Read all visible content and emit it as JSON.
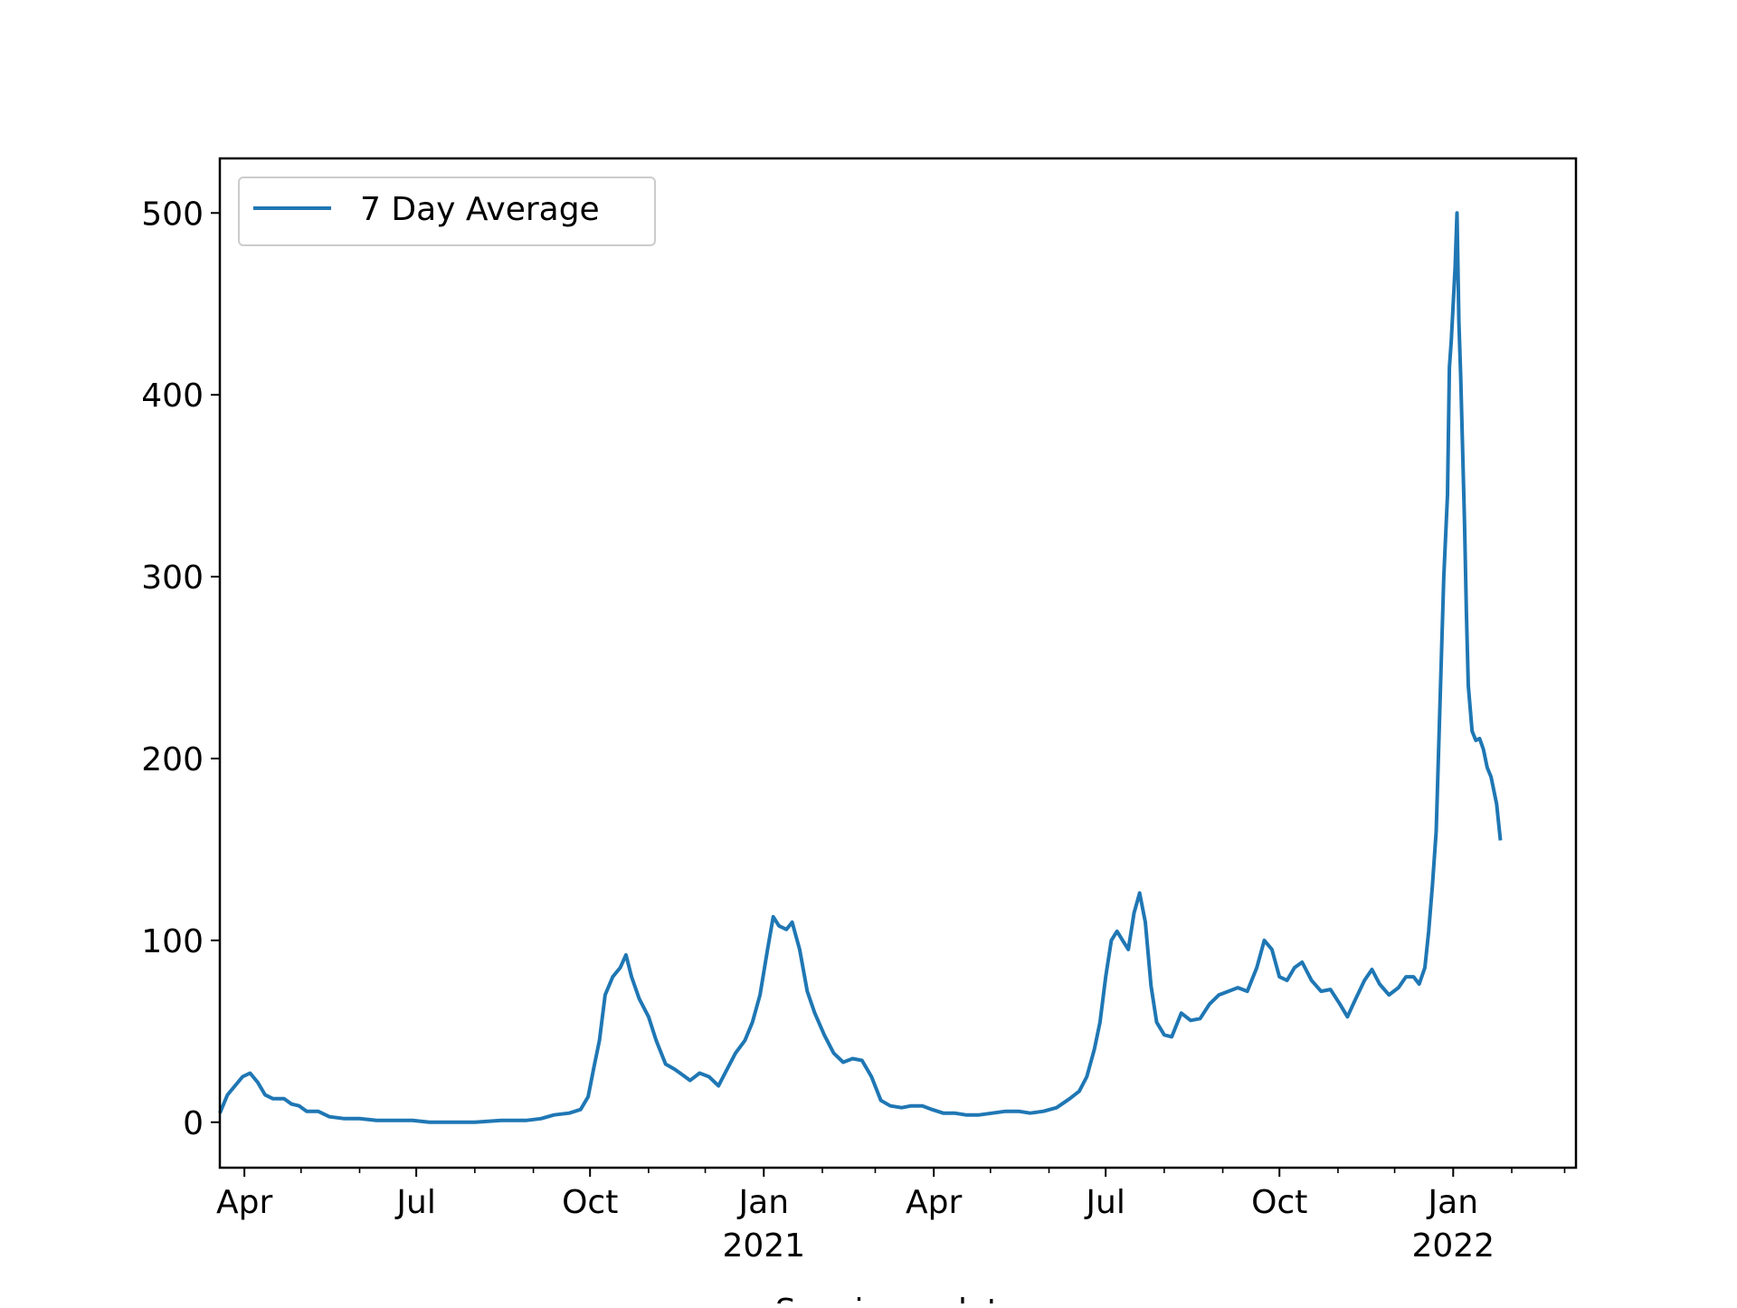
{
  "chart_data": {
    "type": "line",
    "title": "",
    "xlabel": "Specimen date",
    "ylabel": "",
    "ylim": [
      -25,
      530
    ],
    "xlim": [
      "2020-03-19",
      "2022-03-07"
    ],
    "yticks": [
      0,
      100,
      200,
      300,
      400,
      500
    ],
    "xticks": [
      {
        "date": "2020-04-01",
        "label": "Apr",
        "year": ""
      },
      {
        "date": "2020-07-01",
        "label": "Jul",
        "year": ""
      },
      {
        "date": "2020-10-01",
        "label": "Oct",
        "year": ""
      },
      {
        "date": "2021-01-01",
        "label": "Jan",
        "year": "2021"
      },
      {
        "date": "2021-04-01",
        "label": "Apr",
        "year": ""
      },
      {
        "date": "2021-07-01",
        "label": "Jul",
        "year": ""
      },
      {
        "date": "2021-10-01",
        "label": "Oct",
        "year": ""
      },
      {
        "date": "2022-01-01",
        "label": "Jan",
        "year": "2022"
      }
    ],
    "minor_ticks": [
      "2020-05-01",
      "2020-06-01",
      "2020-08-01",
      "2020-09-01",
      "2020-11-01",
      "2020-12-01",
      "2021-02-01",
      "2021-03-01",
      "2021-05-01",
      "2021-06-01",
      "2021-08-01",
      "2021-09-01",
      "2021-11-01",
      "2021-12-01",
      "2022-02-01",
      "2022-03-01"
    ],
    "grid": false,
    "legend": {
      "position": "upper-left"
    },
    "series": [
      {
        "name": "7 Day Average",
        "color": "#1f77b4",
        "points": [
          [
            "2020-03-19",
            5
          ],
          [
            "2020-03-23",
            15
          ],
          [
            "2020-03-27",
            20
          ],
          [
            "2020-03-31",
            25
          ],
          [
            "2020-04-04",
            27
          ],
          [
            "2020-04-08",
            22
          ],
          [
            "2020-04-12",
            15
          ],
          [
            "2020-04-16",
            13
          ],
          [
            "2020-04-22",
            13
          ],
          [
            "2020-04-26",
            10
          ],
          [
            "2020-04-30",
            9
          ],
          [
            "2020-05-04",
            6
          ],
          [
            "2020-05-10",
            6
          ],
          [
            "2020-05-16",
            3
          ],
          [
            "2020-05-24",
            2
          ],
          [
            "2020-06-01",
            2
          ],
          [
            "2020-06-10",
            1
          ],
          [
            "2020-06-20",
            1
          ],
          [
            "2020-06-29",
            1
          ],
          [
            "2020-07-08",
            0
          ],
          [
            "2020-07-20",
            0
          ],
          [
            "2020-08-01",
            0
          ],
          [
            "2020-08-15",
            1
          ],
          [
            "2020-08-28",
            1
          ],
          [
            "2020-09-05",
            2
          ],
          [
            "2020-09-12",
            4
          ],
          [
            "2020-09-20",
            5
          ],
          [
            "2020-09-26",
            7
          ],
          [
            "2020-09-30",
            14
          ],
          [
            "2020-10-03",
            30
          ],
          [
            "2020-10-06",
            45
          ],
          [
            "2020-10-09",
            70
          ],
          [
            "2020-10-13",
            80
          ],
          [
            "2020-10-17",
            85
          ],
          [
            "2020-10-20",
            92
          ],
          [
            "2020-10-23",
            80
          ],
          [
            "2020-10-27",
            68
          ],
          [
            "2020-11-01",
            58
          ],
          [
            "2020-11-05",
            45
          ],
          [
            "2020-11-10",
            32
          ],
          [
            "2020-11-15",
            29
          ],
          [
            "2020-11-19",
            26
          ],
          [
            "2020-11-23",
            23
          ],
          [
            "2020-11-28",
            27
          ],
          [
            "2020-12-03",
            25
          ],
          [
            "2020-12-08",
            20
          ],
          [
            "2020-12-12",
            28
          ],
          [
            "2020-12-17",
            38
          ],
          [
            "2020-12-22",
            45
          ],
          [
            "2020-12-26",
            55
          ],
          [
            "2020-12-30",
            70
          ],
          [
            "2021-01-03",
            95
          ],
          [
            "2021-01-06",
            113
          ],
          [
            "2021-01-09",
            108
          ],
          [
            "2021-01-13",
            106
          ],
          [
            "2021-01-16",
            110
          ],
          [
            "2021-01-20",
            95
          ],
          [
            "2021-01-24",
            72
          ],
          [
            "2021-01-28",
            60
          ],
          [
            "2021-02-02",
            48
          ],
          [
            "2021-02-07",
            38
          ],
          [
            "2021-02-12",
            33
          ],
          [
            "2021-02-17",
            35
          ],
          [
            "2021-02-22",
            34
          ],
          [
            "2021-02-27",
            25
          ],
          [
            "2021-03-04",
            12
          ],
          [
            "2021-03-09",
            9
          ],
          [
            "2021-03-15",
            8
          ],
          [
            "2021-03-20",
            9
          ],
          [
            "2021-03-26",
            9
          ],
          [
            "2021-03-31",
            7
          ],
          [
            "2021-04-06",
            5
          ],
          [
            "2021-04-12",
            5
          ],
          [
            "2021-04-18",
            4
          ],
          [
            "2021-04-25",
            4
          ],
          [
            "2021-05-02",
            5
          ],
          [
            "2021-05-09",
            6
          ],
          [
            "2021-05-16",
            6
          ],
          [
            "2021-05-22",
            5
          ],
          [
            "2021-05-29",
            6
          ],
          [
            "2021-06-05",
            8
          ],
          [
            "2021-06-12",
            13
          ],
          [
            "2021-06-17",
            17
          ],
          [
            "2021-06-21",
            25
          ],
          [
            "2021-06-25",
            40
          ],
          [
            "2021-06-28",
            55
          ],
          [
            "2021-07-01",
            80
          ],
          [
            "2021-07-04",
            100
          ],
          [
            "2021-07-07",
            105
          ],
          [
            "2021-07-10",
            100
          ],
          [
            "2021-07-13",
            95
          ],
          [
            "2021-07-16",
            115
          ],
          [
            "2021-07-19",
            126
          ],
          [
            "2021-07-22",
            110
          ],
          [
            "2021-07-25",
            75
          ],
          [
            "2021-07-28",
            55
          ],
          [
            "2021-08-01",
            48
          ],
          [
            "2021-08-05",
            47
          ],
          [
            "2021-08-10",
            60
          ],
          [
            "2021-08-15",
            56
          ],
          [
            "2021-08-20",
            57
          ],
          [
            "2021-08-25",
            65
          ],
          [
            "2021-08-30",
            70
          ],
          [
            "2021-09-04",
            72
          ],
          [
            "2021-09-09",
            74
          ],
          [
            "2021-09-14",
            72
          ],
          [
            "2021-09-19",
            85
          ],
          [
            "2021-09-23",
            100
          ],
          [
            "2021-09-27",
            95
          ],
          [
            "2021-10-01",
            80
          ],
          [
            "2021-10-05",
            78
          ],
          [
            "2021-10-09",
            85
          ],
          [
            "2021-10-13",
            88
          ],
          [
            "2021-10-18",
            78
          ],
          [
            "2021-10-23",
            72
          ],
          [
            "2021-10-28",
            73
          ],
          [
            "2021-11-02",
            65
          ],
          [
            "2021-11-06",
            58
          ],
          [
            "2021-11-10",
            67
          ],
          [
            "2021-11-15",
            78
          ],
          [
            "2021-11-19",
            84
          ],
          [
            "2021-11-23",
            76
          ],
          [
            "2021-11-28",
            70
          ],
          [
            "2021-12-03",
            74
          ],
          [
            "2021-12-07",
            80
          ],
          [
            "2021-12-11",
            80
          ],
          [
            "2021-12-14",
            76
          ],
          [
            "2021-12-17",
            85
          ],
          [
            "2021-12-19",
            105
          ],
          [
            "2021-12-21",
            130
          ],
          [
            "2021-12-23",
            160
          ],
          [
            "2021-12-25",
            230
          ],
          [
            "2021-12-27",
            300
          ],
          [
            "2021-12-29",
            345
          ],
          [
            "2021-12-30",
            415
          ],
          [
            "2021-12-31",
            430
          ],
          [
            "2022-01-02",
            470
          ],
          [
            "2022-01-03",
            500
          ],
          [
            "2022-01-04",
            440
          ],
          [
            "2022-01-05",
            410
          ],
          [
            "2022-01-07",
            330
          ],
          [
            "2022-01-08",
            280
          ],
          [
            "2022-01-09",
            240
          ],
          [
            "2022-01-11",
            215
          ],
          [
            "2022-01-13",
            210
          ],
          [
            "2022-01-15",
            211
          ],
          [
            "2022-01-17",
            205
          ],
          [
            "2022-01-19",
            195
          ],
          [
            "2022-01-21",
            190
          ],
          [
            "2022-01-24",
            175
          ],
          [
            "2022-01-26",
            155
          ]
        ]
      }
    ]
  }
}
